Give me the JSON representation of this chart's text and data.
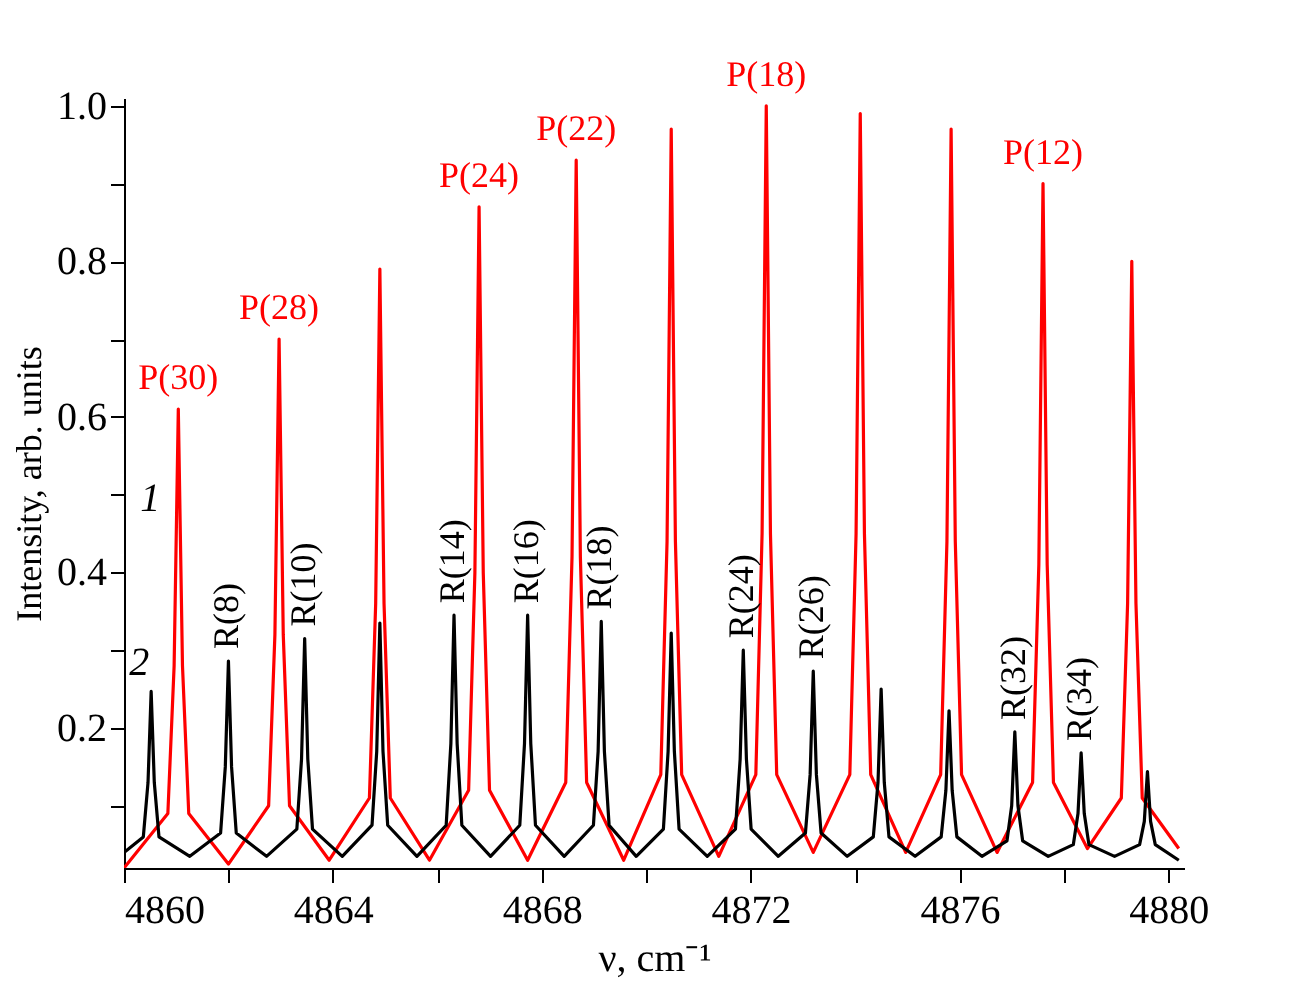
{
  "chart_data": {
    "type": "line",
    "xlabel": "ν, cm⁻¹",
    "ylabel": "Intensity, arb. units",
    "xlim": [
      4860,
      4880.3
    ],
    "ylim": [
      0.02,
      1.01
    ],
    "xticks": [
      4860,
      {
        "value": 4862,
        "label": null
      },
      4864,
      {
        "value": 4866,
        "label": null
      },
      4868,
      {
        "value": 4870,
        "label": null
      },
      4872,
      {
        "value": 4874,
        "label": null
      },
      4876,
      {
        "value": 4878,
        "label": null
      },
      4880
    ],
    "yticks": [
      {
        "value": 0.1,
        "label": null
      },
      0.2,
      {
        "value": 0.3,
        "label": null
      },
      0.4,
      {
        "value": 0.5,
        "label": null
      },
      0.6,
      {
        "value": 0.7,
        "label": null
      },
      0.8,
      {
        "value": 0.9,
        "label": null
      },
      {
        "value": 1.0,
        "label": "1.0"
      }
    ],
    "grid": false,
    "legend": false,
    "line_style": "solid",
    "marker": "none",
    "series": [
      {
        "name": "1",
        "color": "#ff0000",
        "x": [
          4860.0,
          4860.84,
          4860.96,
          4861.04,
          4861.12,
          4861.24,
          4862.0,
          4862.77,
          4862.89,
          4862.97,
          4863.05,
          4863.17,
          4863.93,
          4864.7,
          4864.82,
          4864.9,
          4864.98,
          4865.1,
          4865.85,
          4866.6,
          4866.72,
          4866.8,
          4866.88,
          4867.0,
          4867.73,
          4868.46,
          4868.58,
          4868.66,
          4868.74,
          4868.86,
          4869.57,
          4870.28,
          4870.4,
          4870.48,
          4870.56,
          4870.68,
          4871.39,
          4872.1,
          4872.22,
          4872.3,
          4872.38,
          4872.5,
          4873.2,
          4873.9,
          4874.02,
          4874.1,
          4874.18,
          4874.3,
          4874.97,
          4875.64,
          4875.76,
          4875.84,
          4875.92,
          4876.04,
          4876.72,
          4877.4,
          4877.52,
          4877.6,
          4877.68,
          4877.8,
          4878.45,
          4879.1,
          4879.22,
          4879.3,
          4879.38,
          4879.5,
          4880.2
        ],
        "values": [
          0.02,
          0.09,
          0.28,
          0.61,
          0.28,
          0.09,
          0.025,
          0.1,
          0.32,
          0.7,
          0.32,
          0.1,
          0.03,
          0.11,
          0.36,
          0.79,
          0.36,
          0.11,
          0.03,
          0.12,
          0.4,
          0.87,
          0.4,
          0.12,
          0.03,
          0.13,
          0.42,
          0.93,
          0.42,
          0.13,
          0.03,
          0.14,
          0.44,
          0.97,
          0.44,
          0.14,
          0.035,
          0.14,
          0.45,
          1.0,
          0.45,
          0.14,
          0.04,
          0.14,
          0.45,
          0.99,
          0.45,
          0.14,
          0.04,
          0.14,
          0.44,
          0.97,
          0.44,
          0.14,
          0.04,
          0.13,
          0.41,
          0.9,
          0.41,
          0.13,
          0.045,
          0.11,
          0.36,
          0.8,
          0.36,
          0.11,
          0.045
        ]
      },
      {
        "name": "2",
        "color": "#000000",
        "x": [
          4860.0,
          4860.37,
          4860.46,
          4860.52,
          4860.58,
          4860.67,
          4861.26,
          4861.85,
          4861.94,
          4862.0,
          4862.06,
          4862.15,
          4862.73,
          4863.31,
          4863.4,
          4863.46,
          4863.52,
          4863.61,
          4864.18,
          4864.75,
          4864.84,
          4864.9,
          4864.96,
          4865.05,
          4865.61,
          4866.17,
          4866.26,
          4866.32,
          4866.38,
          4866.47,
          4867.02,
          4867.58,
          4867.67,
          4867.73,
          4867.79,
          4867.88,
          4868.43,
          4868.99,
          4869.08,
          4869.14,
          4869.2,
          4869.29,
          4869.81,
          4870.33,
          4870.42,
          4870.48,
          4870.54,
          4870.63,
          4871.17,
          4871.71,
          4871.8,
          4871.86,
          4871.92,
          4872.01,
          4872.53,
          4873.05,
          4873.14,
          4873.2,
          4873.26,
          4873.35,
          4873.85,
          4874.35,
          4874.44,
          4874.5,
          4874.56,
          4874.65,
          4875.15,
          4875.65,
          4875.74,
          4875.8,
          4875.86,
          4875.95,
          4876.43,
          4876.91,
          4877.0,
          4877.06,
          4877.12,
          4877.21,
          4877.7,
          4878.18,
          4878.27,
          4878.33,
          4878.39,
          4878.48,
          4878.97,
          4879.45,
          4879.54,
          4879.6,
          4879.66,
          4879.75,
          4880.2
        ],
        "values": [
          0.04,
          0.06,
          0.13,
          0.247,
          0.13,
          0.06,
          0.035,
          0.065,
          0.15,
          0.286,
          0.15,
          0.065,
          0.035,
          0.07,
          0.16,
          0.315,
          0.16,
          0.07,
          0.035,
          0.075,
          0.17,
          0.335,
          0.17,
          0.075,
          0.035,
          0.075,
          0.18,
          0.345,
          0.18,
          0.075,
          0.035,
          0.075,
          0.18,
          0.345,
          0.18,
          0.075,
          0.035,
          0.075,
          0.17,
          0.337,
          0.17,
          0.075,
          0.035,
          0.07,
          0.17,
          0.322,
          0.17,
          0.07,
          0.035,
          0.07,
          0.16,
          0.3,
          0.16,
          0.07,
          0.035,
          0.065,
          0.14,
          0.273,
          0.14,
          0.065,
          0.035,
          0.06,
          0.13,
          0.25,
          0.13,
          0.06,
          0.035,
          0.06,
          0.12,
          0.222,
          0.12,
          0.06,
          0.035,
          0.055,
          0.1,
          0.195,
          0.1,
          0.055,
          0.035,
          0.05,
          0.09,
          0.168,
          0.09,
          0.05,
          0.035,
          0.05,
          0.08,
          0.144,
          0.08,
          0.05,
          0.03
        ]
      }
    ],
    "annotations": [
      {
        "text": "P(30)",
        "x": 4861.04,
        "y": 0.61
      },
      {
        "text": "P(28)",
        "x": 4862.97,
        "y": 0.7
      },
      {
        "text": "P(24)",
        "x": 4866.8,
        "y": 0.87
      },
      {
        "text": "P(22)",
        "x": 4868.66,
        "y": 0.93
      },
      {
        "text": "P(18)",
        "x": 4872.3,
        "y": 1.0
      },
      {
        "text": "P(12)",
        "x": 4877.6,
        "y": 0.9
      },
      {
        "text": "R(8)",
        "x": 4862.0,
        "y": 0.286
      },
      {
        "text": "R(10)",
        "x": 4863.46,
        "y": 0.315
      },
      {
        "text": "R(14)",
        "x": 4866.32,
        "y": 0.345
      },
      {
        "text": "R(16)",
        "x": 4867.73,
        "y": 0.345
      },
      {
        "text": "R(18)",
        "x": 4869.14,
        "y": 0.337
      },
      {
        "text": "R(24)",
        "x": 4871.86,
        "y": 0.3
      },
      {
        "text": "R(26)",
        "x": 4873.2,
        "y": 0.273
      },
      {
        "text": "R(32)",
        "x": 4877.06,
        "y": 0.195
      },
      {
        "text": "R(34)",
        "x": 4878.33,
        "y": 0.168
      }
    ]
  }
}
